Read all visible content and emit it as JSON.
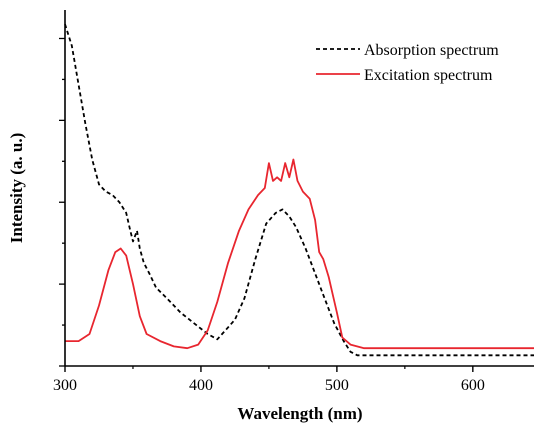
{
  "chart_data": {
    "type": "line",
    "xlabel": "Wavelength (nm)",
    "ylabel": "Intensity (a. u.)",
    "xlim": [
      300,
      645
    ],
    "ylim": [
      0,
      1
    ],
    "xticks": [
      300,
      400,
      500,
      600
    ],
    "yticks_labeled": false,
    "grid": false,
    "legend_position": "top-right",
    "series": [
      {
        "name": "Absorption spectrum",
        "color": "#000000",
        "style": "dashed",
        "points": [
          [
            300,
            0.96
          ],
          [
            305,
            0.9
          ],
          [
            310,
            0.79
          ],
          [
            315,
            0.68
          ],
          [
            320,
            0.58
          ],
          [
            325,
            0.51
          ],
          [
            330,
            0.49
          ],
          [
            335,
            0.48
          ],
          [
            340,
            0.46
          ],
          [
            345,
            0.43
          ],
          [
            348,
            0.38
          ],
          [
            350,
            0.35
          ],
          [
            353,
            0.38
          ],
          [
            355,
            0.33
          ],
          [
            358,
            0.29
          ],
          [
            362,
            0.26
          ],
          [
            367,
            0.22
          ],
          [
            375,
            0.19
          ],
          [
            385,
            0.15
          ],
          [
            395,
            0.12
          ],
          [
            405,
            0.09
          ],
          [
            412,
            0.075
          ],
          [
            418,
            0.1
          ],
          [
            425,
            0.13
          ],
          [
            432,
            0.19
          ],
          [
            440,
            0.3
          ],
          [
            448,
            0.4
          ],
          [
            455,
            0.43
          ],
          [
            460,
            0.44
          ],
          [
            465,
            0.42
          ],
          [
            470,
            0.39
          ],
          [
            477,
            0.33
          ],
          [
            484,
            0.26
          ],
          [
            491,
            0.19
          ],
          [
            498,
            0.12
          ],
          [
            505,
            0.07
          ],
          [
            510,
            0.04
          ],
          [
            515,
            0.03
          ],
          [
            560,
            0.03
          ],
          [
            600,
            0.03
          ],
          [
            645,
            0.03
          ]
        ]
      },
      {
        "name": "Excitation spectrum",
        "color": "#e8262f",
        "style": "solid",
        "points": [
          [
            300,
            0.07
          ],
          [
            310,
            0.07
          ],
          [
            318,
            0.09
          ],
          [
            325,
            0.17
          ],
          [
            332,
            0.27
          ],
          [
            337,
            0.32
          ],
          [
            341,
            0.33
          ],
          [
            345,
            0.31
          ],
          [
            350,
            0.23
          ],
          [
            355,
            0.14
          ],
          [
            360,
            0.09
          ],
          [
            370,
            0.07
          ],
          [
            380,
            0.055
          ],
          [
            390,
            0.05
          ],
          [
            398,
            0.06
          ],
          [
            405,
            0.1
          ],
          [
            412,
            0.18
          ],
          [
            420,
            0.29
          ],
          [
            428,
            0.38
          ],
          [
            435,
            0.44
          ],
          [
            442,
            0.48
          ],
          [
            447,
            0.5
          ],
          [
            450,
            0.57
          ],
          [
            453,
            0.52
          ],
          [
            456,
            0.53
          ],
          [
            459,
            0.52
          ],
          [
            462,
            0.57
          ],
          [
            465,
            0.53
          ],
          [
            468,
            0.58
          ],
          [
            471,
            0.52
          ],
          [
            475,
            0.49
          ],
          [
            480,
            0.47
          ],
          [
            484,
            0.41
          ],
          [
            487,
            0.32
          ],
          [
            490,
            0.3
          ],
          [
            494,
            0.25
          ],
          [
            497,
            0.2
          ],
          [
            500,
            0.15
          ],
          [
            504,
            0.08
          ],
          [
            510,
            0.06
          ],
          [
            520,
            0.05
          ],
          [
            560,
            0.05
          ],
          [
            600,
            0.05
          ],
          [
            645,
            0.05
          ]
        ]
      }
    ]
  }
}
